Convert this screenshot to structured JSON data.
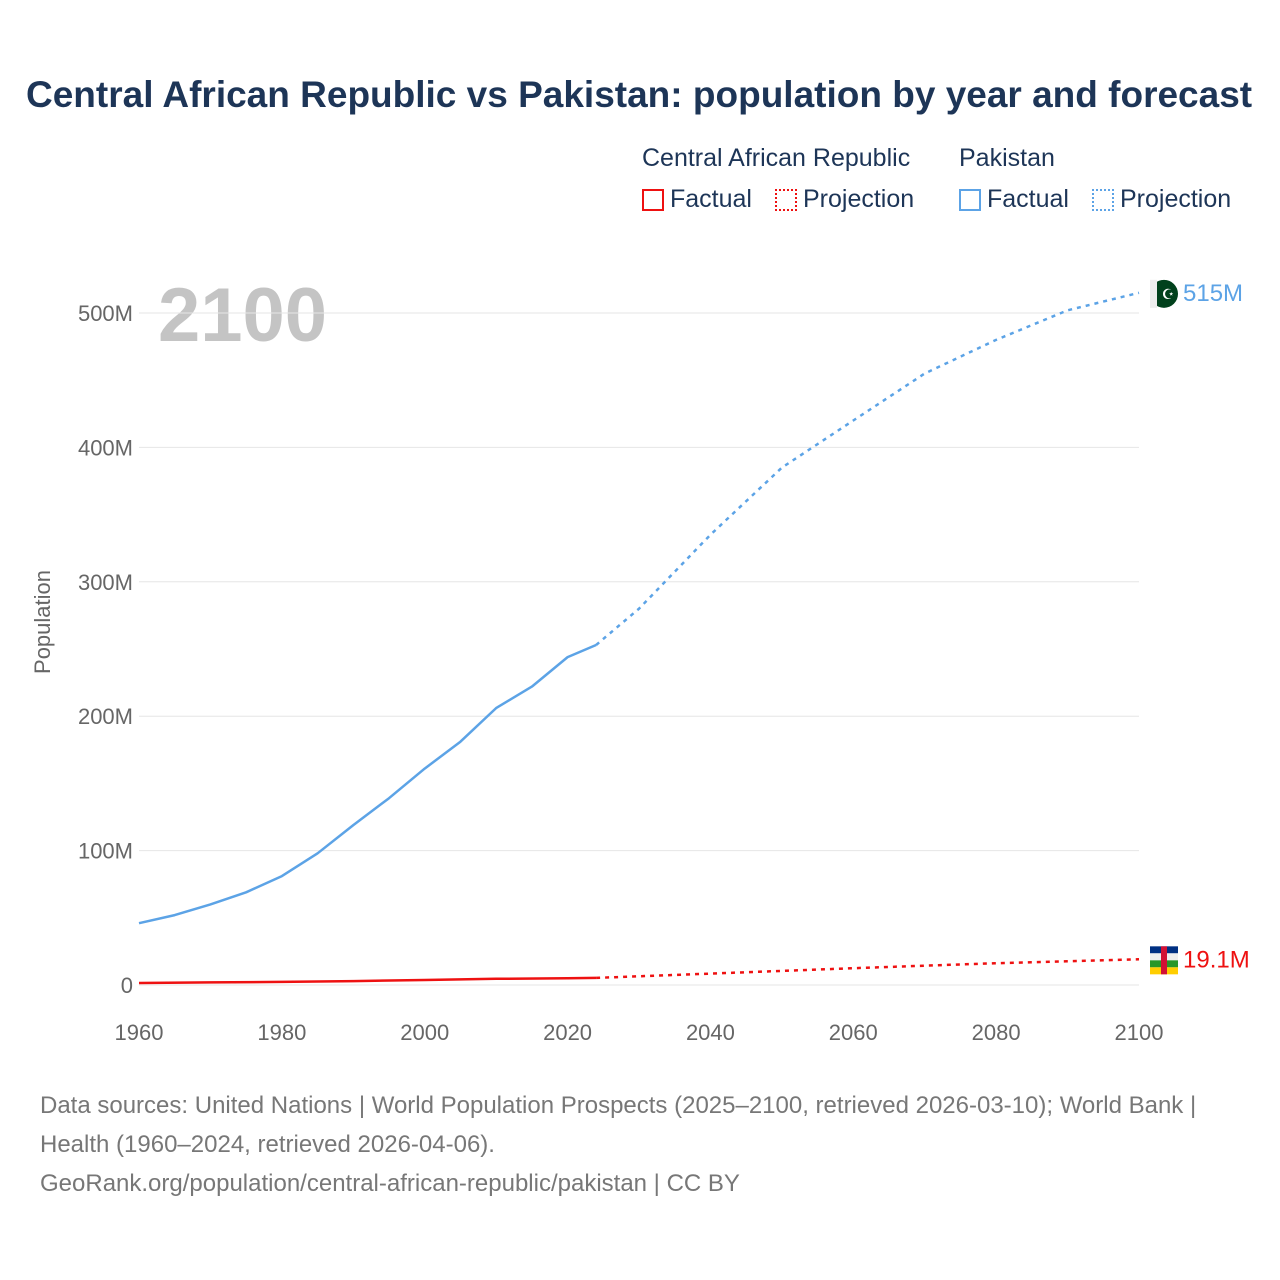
{
  "title": "Central African Republic vs Pakistan: population by year and forecast",
  "legend": {
    "groups": [
      {
        "name": "Central African Republic",
        "factual": "Factual",
        "projection": "Projection",
        "color": "#ee1111"
      },
      {
        "name": "Pakistan",
        "factual": "Factual",
        "projection": "Projection",
        "color": "#5ca3e6"
      }
    ]
  },
  "chart_data": {
    "type": "line",
    "title": "Central African Republic vs Pakistan: population by year and forecast",
    "ylabel": "Population",
    "xlabel": "",
    "year_watermark": "2100",
    "xlim": [
      1960,
      2100
    ],
    "ylim": [
      0,
      500
    ],
    "y_unit": "millions",
    "x_ticks": [
      "1960",
      "1980",
      "2000",
      "2020",
      "2040",
      "2060",
      "2080",
      "2100"
    ],
    "y_ticks": [
      {
        "v": 0,
        "label": "0"
      },
      {
        "v": 100,
        "label": "100M"
      },
      {
        "v": 200,
        "label": "200M"
      },
      {
        "v": 300,
        "label": "300M"
      },
      {
        "v": 400,
        "label": "400M"
      },
      {
        "v": 500,
        "label": "500M"
      }
    ],
    "grid": true,
    "series": [
      {
        "name": "Pakistan",
        "color": "#5ca3e6",
        "end_label": "515M",
        "factual": {
          "x": [
            1960,
            1965,
            1970,
            1975,
            1980,
            1985,
            1990,
            1995,
            2000,
            2005,
            2010,
            2015,
            2020,
            2024
          ],
          "y": [
            46,
            52,
            60,
            69,
            81,
            98,
            119,
            139,
            161,
            181,
            206,
            222,
            244,
            253
          ]
        },
        "projection": {
          "x": [
            2024,
            2030,
            2040,
            2050,
            2060,
            2070,
            2080,
            2090,
            2100
          ],
          "y": [
            253,
            280,
            335,
            385,
            420,
            455,
            480,
            502,
            515
          ]
        }
      },
      {
        "name": "Central African Republic",
        "color": "#ee1111",
        "end_label": "19.1M",
        "factual": {
          "x": [
            1960,
            1970,
            1980,
            1990,
            2000,
            2010,
            2020,
            2024
          ],
          "y": [
            1.5,
            1.9,
            2.3,
            2.9,
            3.7,
            4.6,
            5.0,
            5.3
          ]
        },
        "projection": {
          "x": [
            2024,
            2040,
            2060,
            2080,
            2100
          ],
          "y": [
            5.3,
            8.5,
            12.5,
            16.2,
            19.1
          ]
        }
      }
    ]
  },
  "footer": {
    "sources": "Data sources: United Nations | World Population Prospects (2025–2100, retrieved 2026-03-10); World Bank | Health (1960–2024, retrieved 2026-04-06).",
    "link": "GeoRank.org/population/central-african-republic/pakistan | CC BY"
  }
}
